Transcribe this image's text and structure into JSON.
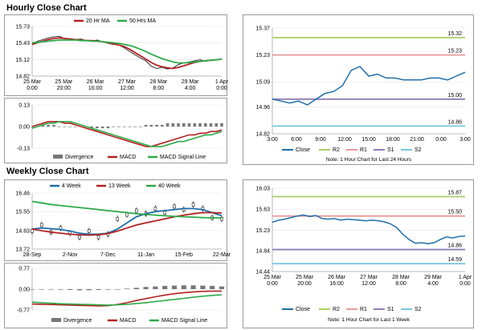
{
  "sections": {
    "hourly_title": "Hourly Close Chart",
    "weekly_title": "Weekly Close Chart"
  },
  "colors": {
    "close": "#1f6fa8",
    "ma_short": "#b22222",
    "ma_long": "#2eaa4a",
    "r2": "#a8cf6a",
    "r1": "#e8999a",
    "s1": "#8e7bb6",
    "s2": "#77c8dd",
    "divergence": "#777777",
    "grid": "#c8c8c8"
  },
  "chart_data": [
    {
      "id": "hourly-price",
      "type": "line",
      "legend": [
        "20 Hr MA",
        "50 Hrs MA"
      ],
      "x_ticks": [
        [
          "25 Mar",
          "0:00"
        ],
        [
          "25 Mar",
          "20:00"
        ],
        [
          "26 Mar",
          "16:00"
        ],
        [
          "27 Mar",
          "12:00"
        ],
        [
          "28 Mar",
          "8:00"
        ],
        [
          "29 Mar",
          "4:00"
        ],
        [
          "1 Apr",
          "0:00"
        ]
      ],
      "y_ticks": [
        "15.73",
        "15.43",
        "15.12",
        "14.82"
      ],
      "ylim": [
        14.82,
        15.73
      ],
      "series": [
        {
          "name": "Close",
          "values": [
            15.41,
            15.46,
            15.49,
            15.52,
            15.54,
            15.55,
            15.51,
            15.5,
            15.49,
            15.5,
            15.47,
            15.46,
            15.48,
            15.45,
            15.42,
            15.4,
            15.39,
            15.34,
            15.27,
            15.21,
            15.15,
            15.1,
            15.0,
            14.96,
            14.98,
            14.95,
            14.97,
            15.03,
            15.06,
            15.08,
            15.1,
            15.12,
            15.09,
            15.11,
            15.12,
            15.14
          ]
        },
        {
          "name": "20 Hr MA",
          "values": [
            15.4,
            15.43,
            15.46,
            15.49,
            15.51,
            15.52,
            15.51,
            15.5,
            15.49,
            15.48,
            15.47,
            15.47,
            15.46,
            15.45,
            15.43,
            15.41,
            15.39,
            15.36,
            15.31,
            15.25,
            15.19,
            15.13,
            15.07,
            15.02,
            14.99,
            14.97,
            14.96,
            14.98,
            15.01,
            15.04,
            15.07,
            15.09,
            15.1,
            15.11,
            15.12,
            15.13
          ]
        },
        {
          "name": "50 Hrs MA",
          "values": [
            15.43,
            15.44,
            15.45,
            15.46,
            15.47,
            15.48,
            15.48,
            15.48,
            15.48,
            15.47,
            15.47,
            15.46,
            15.46,
            15.45,
            15.44,
            15.43,
            15.42,
            15.4,
            15.38,
            15.35,
            15.31,
            15.27,
            15.22,
            15.18,
            15.14,
            15.11,
            15.08,
            15.06,
            15.06,
            15.07,
            15.08,
            15.09,
            15.1,
            15.11,
            15.12,
            15.13
          ]
        }
      ]
    },
    {
      "id": "hourly-macd",
      "type": "line",
      "legend": [
        "Divergence",
        "MACD",
        "MACD Signal Line"
      ],
      "y_ticks": [
        "0.13",
        "0.00",
        "-0.13"
      ],
      "ylim": [
        -0.13,
        0.13
      ],
      "series": [
        {
          "name": "Divergence",
          "values": [
            0.0,
            0.0,
            0.01,
            0.01,
            0.01,
            0.0,
            0.0,
            0.0,
            0.0,
            0.0,
            0.0,
            -0.01,
            -0.01,
            -0.01,
            -0.01,
            0.0,
            0.0,
            0.0,
            0.0,
            0.0,
            0.0,
            0.01,
            0.01,
            0.01,
            0.01,
            0.02,
            0.02,
            0.02,
            0.02,
            0.02,
            0.02,
            0.02,
            0.02,
            0.02,
            0.02,
            0.02
          ]
        },
        {
          "name": "MACD",
          "values": [
            0.0,
            0.01,
            0.02,
            0.03,
            0.03,
            0.03,
            0.02,
            0.02,
            0.01,
            0.0,
            -0.01,
            -0.02,
            -0.03,
            -0.04,
            -0.05,
            -0.06,
            -0.07,
            -0.08,
            -0.09,
            -0.1,
            -0.11,
            -0.12,
            -0.12,
            -0.11,
            -0.1,
            -0.09,
            -0.08,
            -0.07,
            -0.06,
            -0.05,
            -0.05,
            -0.04,
            -0.04,
            -0.03,
            -0.03,
            -0.02
          ]
        },
        {
          "name": "MACD Signal Line",
          "values": [
            -0.01,
            0.0,
            0.01,
            0.02,
            0.02,
            0.03,
            0.03,
            0.03,
            0.02,
            0.01,
            0.0,
            -0.01,
            -0.02,
            -0.03,
            -0.04,
            -0.05,
            -0.06,
            -0.07,
            -0.08,
            -0.09,
            -0.1,
            -0.11,
            -0.12,
            -0.12,
            -0.12,
            -0.11,
            -0.1,
            -0.09,
            -0.09,
            -0.08,
            -0.07,
            -0.06,
            -0.05,
            -0.05,
            -0.04,
            -0.03
          ]
        }
      ]
    },
    {
      "id": "hourly-pivot",
      "type": "line",
      "legend": [
        "Close",
        "R2",
        "R1",
        "S1",
        "S2"
      ],
      "note": "Note: 1 Hour Chart for Last 24 Hours",
      "x_ticks": [
        "3:00",
        "6:00",
        "9:00",
        "12:00",
        "15:00",
        "18:00",
        "21:00",
        "0:00",
        "3:00"
      ],
      "y_ticks": [
        "15.37",
        "15.23",
        "15.09",
        "14.96",
        "14.82"
      ],
      "ylim": [
        14.82,
        15.37
      ],
      "levels": [
        {
          "name": "R2",
          "value": 15.32,
          "label": "15.32"
        },
        {
          "name": "R1",
          "value": 15.23,
          "label": "15.23"
        },
        {
          "name": "S1",
          "value": 15.0,
          "label": "15.00"
        },
        {
          "name": "S2",
          "value": 14.86,
          "label": "14.86"
        }
      ],
      "series": [
        {
          "name": "Close",
          "values": [
            15.0,
            14.99,
            14.98,
            14.99,
            14.97,
            15.0,
            15.03,
            15.04,
            15.07,
            15.15,
            15.17,
            15.12,
            15.13,
            15.11,
            15.11,
            15.1,
            15.1,
            15.1,
            15.11,
            15.11,
            15.1,
            15.12,
            15.14
          ]
        }
      ]
    },
    {
      "id": "weekly-price",
      "type": "line",
      "legend": [
        "4 Week",
        "13 Week",
        "40 Week"
      ],
      "x_ticks": [
        "28-Sep",
        "2-Nov",
        "7-Dec",
        "11-Jan",
        "15-Feb",
        "22-Mar"
      ],
      "y_ticks": [
        "16.46",
        "15.55",
        "14.63",
        "13.72"
      ],
      "ylim": [
        13.72,
        16.46
      ],
      "series": [
        {
          "name": "Close",
          "values": [
            14.6,
            14.9,
            14.55,
            14.75,
            14.5,
            14.3,
            14.6,
            14.3,
            14.45,
            15.2,
            15.4,
            15.6,
            15.45,
            15.7,
            15.5,
            15.8,
            15.65,
            15.9,
            15.7,
            15.25,
            15.2
          ]
        },
        {
          "name": "4 Week",
          "values": [
            14.7,
            14.75,
            14.72,
            14.68,
            14.6,
            14.5,
            14.45,
            14.45,
            14.5,
            14.7,
            15.0,
            15.3,
            15.45,
            15.55,
            15.6,
            15.65,
            15.7,
            15.7,
            15.65,
            15.5,
            15.35
          ]
        },
        {
          "name": "13 Week",
          "values": [
            14.7,
            14.62,
            14.55,
            14.5,
            14.45,
            14.42,
            14.4,
            14.42,
            14.48,
            14.6,
            14.75,
            14.9,
            15.0,
            15.1,
            15.2,
            15.3,
            15.38,
            15.45,
            15.5,
            15.5,
            15.48
          ]
        },
        {
          "name": "40 Week",
          "values": [
            16.05,
            15.98,
            15.9,
            15.85,
            15.8,
            15.75,
            15.7,
            15.65,
            15.6,
            15.55,
            15.5,
            15.45,
            15.42,
            15.38,
            15.35,
            15.32,
            15.3,
            15.28,
            15.26,
            15.25,
            15.24
          ]
        }
      ]
    },
    {
      "id": "weekly-macd",
      "type": "line",
      "legend": [
        "Divergence",
        "MACD",
        "MACD Signal Line"
      ],
      "y_ticks": [
        "0.77",
        "0.00",
        "-0.77"
      ],
      "ylim": [
        -0.77,
        0.77
      ],
      "series": [
        {
          "name": "Divergence",
          "values": [
            0.0,
            0.0,
            0.0,
            -0.02,
            -0.03,
            -0.04,
            -0.04,
            -0.03,
            -0.02,
            0.0,
            0.02,
            0.05,
            0.08,
            0.1,
            0.12,
            0.13,
            0.14,
            0.14,
            0.13,
            0.12,
            0.1
          ]
        },
        {
          "name": "MACD",
          "values": [
            -0.55,
            -0.56,
            -0.57,
            -0.58,
            -0.59,
            -0.6,
            -0.61,
            -0.62,
            -0.61,
            -0.57,
            -0.5,
            -0.42,
            -0.35,
            -0.28,
            -0.22,
            -0.17,
            -0.13,
            -0.1,
            -0.08,
            -0.07,
            -0.07
          ]
        },
        {
          "name": "MACD Signal Line",
          "values": [
            -0.48,
            -0.5,
            -0.52,
            -0.54,
            -0.55,
            -0.56,
            -0.57,
            -0.58,
            -0.59,
            -0.58,
            -0.56,
            -0.53,
            -0.5,
            -0.46,
            -0.42,
            -0.38,
            -0.34,
            -0.3,
            -0.26,
            -0.23,
            -0.21
          ]
        }
      ]
    },
    {
      "id": "weekly-pivot",
      "type": "line",
      "legend": [
        "Close",
        "R2",
        "R1",
        "S1",
        "S2"
      ],
      "note": "Note: 1 Hour Chart for Last 1 Week",
      "x_ticks": [
        [
          "25 Mar",
          "0:00"
        ],
        [
          "25 Mar",
          "20:00"
        ],
        [
          "26 Mar",
          "16:00"
        ],
        [
          "27 Mar",
          "12:00"
        ],
        [
          "28 Mar",
          "8:00"
        ],
        [
          "29 Mar",
          "4:00"
        ],
        [
          "1 Apr",
          "0:00"
        ]
      ],
      "y_ticks": [
        "16.03",
        "15.63",
        "15.23",
        "14.84",
        "14.44"
      ],
      "ylim": [
        14.44,
        16.03
      ],
      "levels": [
        {
          "name": "R2",
          "value": 15.87,
          "label": "15.87"
        },
        {
          "name": "R1",
          "value": 15.5,
          "label": "15.50"
        },
        {
          "name": "S1",
          "value": 14.86,
          "label": "14.86"
        },
        {
          "name": "S2",
          "value": 14.59,
          "label": "14.59"
        }
      ],
      "series": [
        {
          "name": "Close",
          "values": [
            15.38,
            15.42,
            15.44,
            15.47,
            15.5,
            15.52,
            15.49,
            15.51,
            15.45,
            15.44,
            15.45,
            15.42,
            15.44,
            15.43,
            15.42,
            15.41,
            15.42,
            15.41,
            15.39,
            15.35,
            15.28,
            15.15,
            15.05,
            14.98,
            14.99,
            14.97,
            14.99,
            15.05,
            15.1,
            15.08,
            15.11,
            15.12
          ]
        }
      ]
    }
  ]
}
